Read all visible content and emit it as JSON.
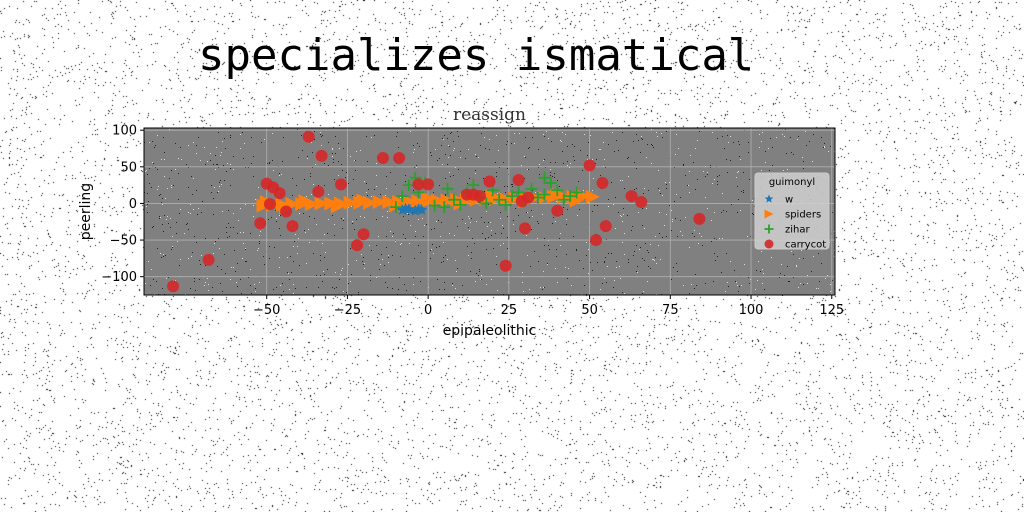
{
  "page_title": "specializes ismatical",
  "chart_data": {
    "type": "scatter",
    "title": "reassign",
    "xlabel": "epipaleolithic",
    "ylabel": "peerling",
    "xlim": [
      -88,
      126
    ],
    "ylim": [
      -125,
      103
    ],
    "xticks": [
      -50,
      -25,
      0,
      25,
      50,
      75,
      100,
      125
    ],
    "yticks": [
      100,
      50,
      0,
      -50,
      -100
    ],
    "xtick_labels": [
      "−50",
      "−25",
      "0",
      "25",
      "50",
      "75",
      "100",
      "125"
    ],
    "ytick_labels": [
      "100",
      "50",
      "0",
      "−50",
      "−100"
    ],
    "grid": true,
    "legend": {
      "title": "guimonyl",
      "placement": "right"
    },
    "series": [
      {
        "name": "w",
        "marker": "star",
        "color": "#1f77b4",
        "points": [
          [
            -8,
            -9
          ],
          [
            -6,
            -8
          ],
          [
            -4,
            -10
          ],
          [
            -2,
            -9
          ],
          [
            -7,
            -7
          ],
          [
            -3,
            -8
          ]
        ]
      },
      {
        "name": "spiders",
        "marker": "triangle-right",
        "color": "#ff7f0e",
        "points": [
          [
            -51,
            -3
          ],
          [
            -48,
            -2
          ],
          [
            -45,
            -2
          ],
          [
            -42,
            -1
          ],
          [
            -39,
            -1
          ],
          [
            -36,
            -1
          ],
          [
            -33,
            0
          ],
          [
            -30,
            0
          ],
          [
            -27,
            0
          ],
          [
            -24,
            1
          ],
          [
            -21,
            1
          ],
          [
            -18,
            1
          ],
          [
            -15,
            2
          ],
          [
            -12,
            2
          ],
          [
            -9,
            2
          ],
          [
            -6,
            3
          ],
          [
            -3,
            3
          ],
          [
            0,
            3
          ],
          [
            3,
            4
          ],
          [
            6,
            4
          ],
          [
            9,
            5
          ],
          [
            12,
            5
          ],
          [
            15,
            5
          ],
          [
            18,
            6
          ],
          [
            21,
            6
          ],
          [
            24,
            6
          ],
          [
            27,
            7
          ],
          [
            30,
            7
          ],
          [
            33,
            8
          ],
          [
            36,
            8
          ],
          [
            39,
            9
          ],
          [
            42,
            9
          ],
          [
            45,
            9
          ],
          [
            48,
            10
          ],
          [
            51,
            9
          ],
          [
            -50,
            2
          ],
          [
            -44,
            -5
          ],
          [
            -38,
            3
          ],
          [
            -28,
            -4
          ],
          [
            -20,
            4
          ],
          [
            -10,
            -3
          ],
          [
            0,
            7
          ],
          [
            10,
            0
          ],
          [
            20,
            10
          ],
          [
            30,
            3
          ],
          [
            40,
            12
          ],
          [
            46,
            4
          ]
        ]
      },
      {
        "name": "zihar",
        "marker": "plus",
        "color": "#2ca02c",
        "points": [
          [
            -10,
            -5
          ],
          [
            -6,
            25
          ],
          [
            -4,
            35
          ],
          [
            -3,
            15
          ],
          [
            -1,
            28
          ],
          [
            2,
            -3
          ],
          [
            5,
            -5
          ],
          [
            8,
            5
          ],
          [
            10,
            -2
          ],
          [
            12,
            15
          ],
          [
            14,
            25
          ],
          [
            16,
            8
          ],
          [
            18,
            0
          ],
          [
            20,
            18
          ],
          [
            22,
            5
          ],
          [
            24,
            -2
          ],
          [
            26,
            10
          ],
          [
            28,
            15
          ],
          [
            30,
            3
          ],
          [
            32,
            20
          ],
          [
            34,
            8
          ],
          [
            36,
            12
          ],
          [
            38,
            28
          ],
          [
            40,
            18
          ],
          [
            42,
            5
          ],
          [
            44,
            10
          ],
          [
            46,
            15
          ],
          [
            -8,
            10
          ],
          [
            6,
            20
          ],
          [
            36,
            35
          ]
        ]
      },
      {
        "name": "carrycot",
        "marker": "circle",
        "color": "#d62728",
        "points": [
          [
            -79,
            -113
          ],
          [
            -68,
            -77
          ],
          [
            -52,
            -27
          ],
          [
            -50,
            27
          ],
          [
            -49,
            -1
          ],
          [
            -48,
            22
          ],
          [
            -46,
            14
          ],
          [
            -44,
            -11
          ],
          [
            -42,
            -31
          ],
          [
            -37,
            91
          ],
          [
            -34,
            16
          ],
          [
            -33,
            65
          ],
          [
            -27,
            26
          ],
          [
            -22,
            -57
          ],
          [
            -20,
            -42
          ],
          [
            -14,
            62
          ],
          [
            -9,
            62
          ],
          [
            -3,
            26
          ],
          [
            0,
            26
          ],
          [
            12,
            12
          ],
          [
            14,
            12
          ],
          [
            16,
            10
          ],
          [
            19,
            30
          ],
          [
            24,
            -85
          ],
          [
            28,
            32
          ],
          [
            29,
            3
          ],
          [
            30,
            -34
          ],
          [
            31,
            8
          ],
          [
            40,
            -10
          ],
          [
            50,
            52
          ],
          [
            52,
            -50
          ],
          [
            54,
            28
          ],
          [
            55,
            -31
          ],
          [
            63,
            10
          ],
          [
            66,
            2
          ],
          [
            84,
            -21
          ]
        ]
      }
    ]
  }
}
